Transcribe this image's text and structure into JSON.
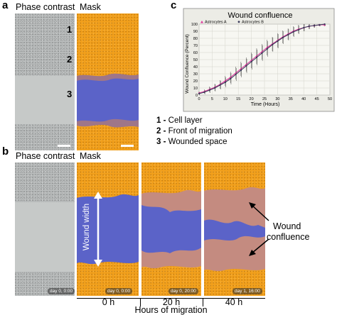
{
  "panel_a": {
    "label": "a",
    "header_phase": "Phase contrast",
    "header_mask": "Mask",
    "markers": [
      "1",
      "2",
      "3"
    ],
    "legend": [
      {
        "num": "1",
        "sep": " - ",
        "text": "Cell layer"
      },
      {
        "num": "2",
        "sep": " - ",
        "text": "Front of migration"
      },
      {
        "num": "3",
        "sep": " - ",
        "text": "Wounded space"
      }
    ]
  },
  "panel_b": {
    "label": "b",
    "header_phase": "Phase contrast",
    "header_mask": "Mask",
    "stamps": [
      "day 0, 0:00",
      "day 0, 0:00",
      "day 0, 20:00",
      "day 1, 16:00"
    ],
    "wound_width_label": "Wound width",
    "time_labels": [
      "0 h",
      "20 h",
      "40 h"
    ],
    "xaxis_title": "Hours of migration",
    "confluence_label_line1": "Wound",
    "confluence_label_line2": "confluence"
  },
  "panel_c": {
    "label": "c",
    "chart_data": {
      "type": "line",
      "title": "Wound confluence",
      "xlabel": "Time (Hours)",
      "ylabel": "Wound Confluence (Percent)",
      "xlim": [
        0,
        50
      ],
      "ylim": [
        0,
        100
      ],
      "xticks": [
        "0",
        "5",
        "10",
        "15",
        "20",
        "25",
        "30",
        "35",
        "40",
        "45",
        "50"
      ],
      "yticks": [
        "0",
        "10",
        "20",
        "30",
        "40",
        "50",
        "60",
        "70",
        "80",
        "90",
        "100"
      ],
      "grid": true,
      "legend_position": "top-left",
      "series": [
        {
          "name": "Astrocytes A",
          "color": "#e0359c",
          "marker": "triangle",
          "x": [
            0,
            2,
            4,
            6,
            8,
            10,
            12,
            14,
            16,
            18,
            20,
            22,
            24,
            26,
            28,
            30,
            32,
            34,
            36,
            38,
            40,
            42,
            44,
            46,
            48
          ],
          "y": [
            3,
            5,
            8,
            11,
            15,
            20,
            25,
            31,
            37,
            43,
            49,
            55,
            61,
            67,
            72,
            77,
            82,
            86,
            90,
            93,
            95,
            97,
            98,
            99,
            99
          ]
        },
        {
          "name": "Astrocytes B",
          "color": "#3a3a5a",
          "marker": "star",
          "x": [
            0,
            2,
            4,
            6,
            8,
            10,
            12,
            14,
            16,
            18,
            20,
            22,
            24,
            26,
            28,
            30,
            32,
            34,
            36,
            38,
            40,
            42,
            44,
            46,
            48
          ],
          "y": [
            2,
            4,
            7,
            10,
            14,
            18,
            23,
            29,
            35,
            41,
            47,
            53,
            59,
            65,
            71,
            76,
            81,
            85,
            89,
            92,
            95,
            97,
            98,
            99,
            100
          ]
        }
      ],
      "error": [
        2,
        3,
        4,
        5,
        6,
        7,
        8,
        9,
        10,
        10,
        11,
        11,
        11,
        11,
        10,
        10,
        9,
        8,
        7,
        6,
        5,
        4,
        3,
        2,
        2
      ]
    }
  }
}
